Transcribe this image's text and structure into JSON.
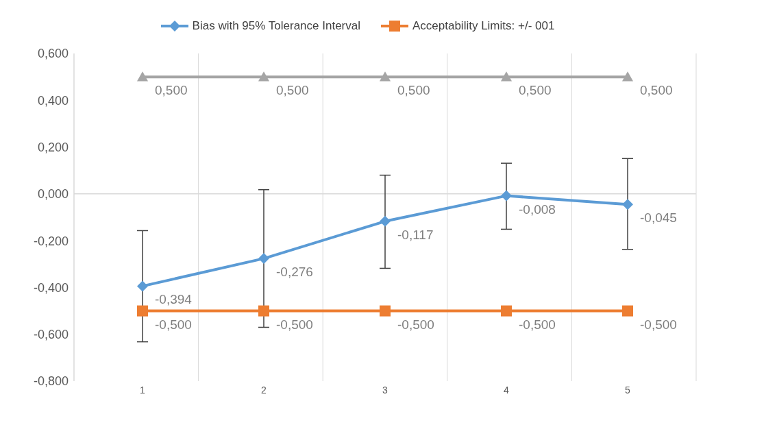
{
  "chart_data": {
    "type": "line",
    "categories": [
      "1",
      "2",
      "3",
      "4",
      "5"
    ],
    "series": [
      {
        "name": "Bias with 95% Tolerance Interval",
        "color": "#5b9bd5",
        "marker": "diamond",
        "values": [
          -0.394,
          -0.276,
          -0.117,
          -0.008,
          -0.045
        ],
        "errors": [
          [
            -0.632,
            -0.157
          ],
          [
            -0.57,
            0.018
          ],
          [
            -0.318,
            0.08
          ],
          [
            -0.151,
            0.131
          ],
          [
            -0.237,
            0.151
          ]
        ],
        "value_labels": [
          "-0,394",
          "-0,276",
          "-0,117",
          "-0,008",
          "-0,045"
        ]
      },
      {
        "name": "Acceptability Limits: +/- 001",
        "color": "#ed7d31",
        "marker": "square",
        "values": [
          -0.5,
          -0.5,
          -0.5,
          -0.5,
          -0.5
        ],
        "value_labels": [
          "-0,500",
          "-0,500",
          "-0,500",
          "-0,500",
          "-0,500"
        ]
      },
      {
        "color": "#a5a5a5",
        "marker": "triangle",
        "values": [
          0.5,
          0.5,
          0.5,
          0.5,
          0.5
        ],
        "value_labels": [
          "0,500",
          "0,500",
          "0,500",
          "0,500",
          "0,500"
        ]
      }
    ],
    "ylim": [
      -0.8,
      0.6
    ],
    "yticks": [
      {
        "value": -0.8,
        "label": "-0,800"
      },
      {
        "value": -0.6,
        "label": "-0,600"
      },
      {
        "value": -0.4,
        "label": "-0,400"
      },
      {
        "value": -0.2,
        "label": "-0,200"
      },
      {
        "value": 0,
        "label": "0,000"
      },
      {
        "value": 0.2,
        "label": "0,200"
      },
      {
        "value": 0.4,
        "label": "0,400"
      },
      {
        "value": 0.6,
        "label": "0,600"
      }
    ],
    "ref_lines": [
      {
        "axis": "y",
        "value": 0,
        "color": "#d9d9d9"
      }
    ],
    "grid": "x",
    "legend": "top",
    "line_style": "solid"
  }
}
